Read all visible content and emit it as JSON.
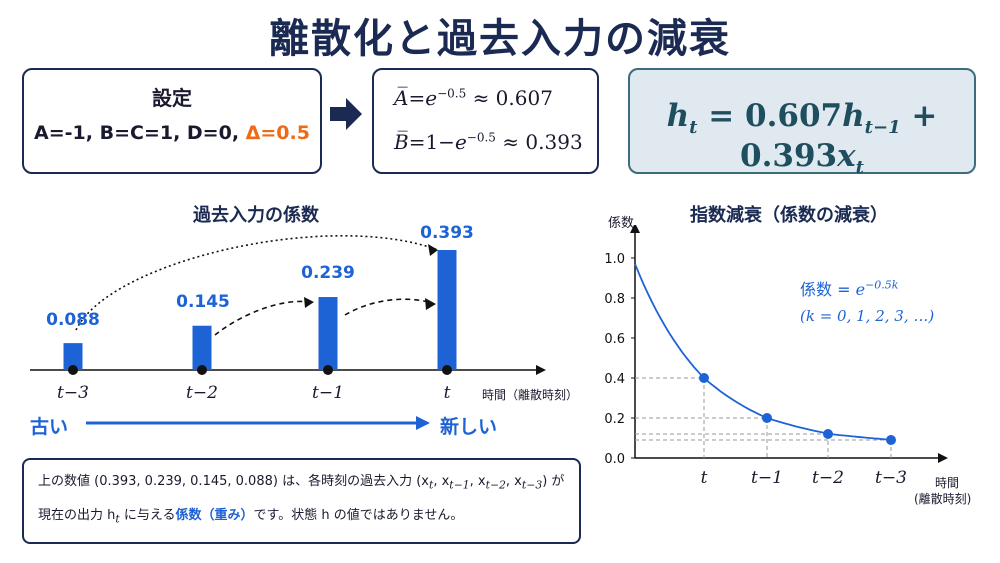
{
  "title": "離散化と過去入力の減衰",
  "settings": {
    "header": "設定",
    "values": "A=-1, B=C=1, D=0, ",
    "delta": "Δ=0.5"
  },
  "discretized": {
    "a_lhs": "A̅",
    "a_rhs_pre": "=",
    "a_exp": "−0.5",
    "a_approx": "≈ 0.607",
    "b_lhs": "B̅",
    "b_rhs_pre": "=1−",
    "b_exp": "−0.5",
    "b_approx": "≈ 0.393"
  },
  "update_equation": {
    "h": "h",
    "h_sub": "t",
    "mid": " = 0.607",
    "h2_sub": "t−1",
    "plus": " + 0.393",
    "x": "x",
    "x_sub": "t"
  },
  "bar_section": {
    "title": "過去入力の係数",
    "axis_note": "時間（離散時刻）",
    "old_label": "古い",
    "new_label": "新しい"
  },
  "decay_section": {
    "title": "指数減衰（係数の減衰）",
    "y_axis_label": "係数",
    "x_axis_label_1": "時間",
    "x_axis_label_2": "(離散時刻)",
    "formula_1a": "係数 =",
    "formula_1b": "e",
    "formula_1c": "−0.5k",
    "formula_2": "(k = 0, 1, 2, 3, …)"
  },
  "note": {
    "line1_a": "上の数値 (0.393, 0.239, 0.145, 0.088) は、各時刻の過去入力 (x",
    "line1_sub_t": "t",
    "line1_b": ", x",
    "line1_sub_t1": "t−1",
    "line1_c": ", x",
    "line1_sub_t2": "t−2",
    "line1_d": ", x",
    "line1_sub_t3": "t−3",
    "line1_e": ") が",
    "line2_a": "現在の出力 h",
    "line2_sub": "t",
    "line2_b": " に与える",
    "line2_highlight": "係数（重み）",
    "line2_c": "です。状態 h の値ではありません。"
  },
  "colors": {
    "bar": "#1e63d6",
    "navy": "#1b2a52",
    "accent_orange": "#ee6a14",
    "update_box_bg": "#dfe9ef"
  },
  "chart_data": [
    {
      "type": "bar",
      "title": "過去入力の係数",
      "categories": [
        "t−3",
        "t−2",
        "t−1",
        "t"
      ],
      "values": [
        0.088,
        0.145,
        0.239,
        0.393
      ],
      "value_labels": [
        "0.088",
        "0.145",
        "0.239",
        "0.393"
      ],
      "xlabel": "時間（離散時刻）",
      "ylabel": ""
    },
    {
      "type": "line",
      "title": "指数減衰（係数の減衰）",
      "ylabel": "係数",
      "xlabel": "時間 (離散時刻)",
      "categories": [
        "t",
        "t−1",
        "t−2",
        "t−3"
      ],
      "curve_x": [
        0,
        1,
        2,
        3
      ],
      "curve_y": [
        0.9,
        0.4,
        0.2,
        0.12
      ],
      "points": [
        0.4,
        0.2,
        0.12,
        0.09
      ],
      "yticks": [
        "0.0",
        "0.2",
        "0.4",
        "0.6",
        "0.8",
        "1.0"
      ],
      "ylim": [
        0,
        1.0
      ],
      "grid": false
    }
  ]
}
